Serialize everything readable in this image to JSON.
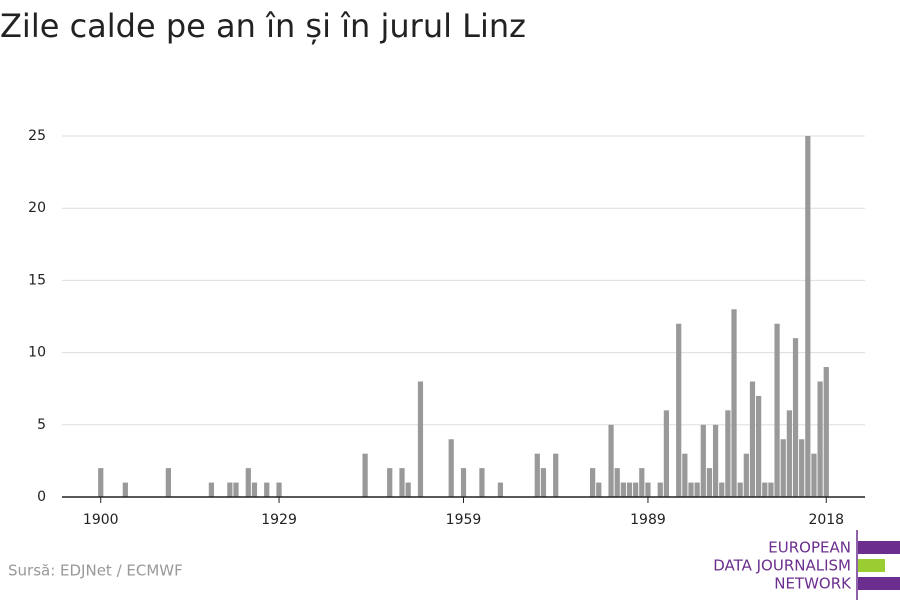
{
  "chart_data": {
    "type": "bar",
    "title": "Zile calde pe an în și în jurul Linz",
    "source": "Sursă: EDJNet / ECMWF",
    "x": [
      1900,
      1901,
      1902,
      1903,
      1904,
      1905,
      1906,
      1907,
      1908,
      1909,
      1910,
      1911,
      1912,
      1913,
      1914,
      1915,
      1916,
      1917,
      1918,
      1919,
      1920,
      1921,
      1922,
      1923,
      1924,
      1925,
      1926,
      1927,
      1928,
      1929,
      1930,
      1931,
      1932,
      1933,
      1934,
      1935,
      1936,
      1937,
      1938,
      1939,
      1940,
      1941,
      1942,
      1943,
      1944,
      1945,
      1946,
      1947,
      1948,
      1949,
      1950,
      1951,
      1952,
      1953,
      1954,
      1955,
      1956,
      1957,
      1958,
      1959,
      1960,
      1961,
      1962,
      1963,
      1964,
      1965,
      1966,
      1967,
      1968,
      1969,
      1970,
      1971,
      1972,
      1973,
      1974,
      1975,
      1976,
      1977,
      1978,
      1979,
      1980,
      1981,
      1982,
      1983,
      1984,
      1985,
      1986,
      1987,
      1988,
      1989,
      1990,
      1991,
      1992,
      1993,
      1994,
      1995,
      1996,
      1997,
      1998,
      1999,
      2000,
      2001,
      2002,
      2003,
      2004,
      2005,
      2006,
      2007,
      2008,
      2009,
      2010,
      2011,
      2012,
      2013,
      2014,
      2015,
      2016,
      2017,
      2018
    ],
    "values": [
      2,
      0,
      0,
      0,
      1,
      0,
      0,
      0,
      0,
      0,
      0,
      2,
      0,
      0,
      0,
      0,
      0,
      0,
      1,
      0,
      0,
      1,
      1,
      0,
      2,
      1,
      0,
      1,
      0,
      1,
      0,
      0,
      0,
      0,
      0,
      0,
      0,
      0,
      0,
      0,
      0,
      0,
      0,
      3,
      0,
      0,
      0,
      2,
      0,
      2,
      1,
      0,
      8,
      0,
      0,
      0,
      0,
      4,
      0,
      2,
      0,
      0,
      2,
      0,
      0,
      1,
      0,
      0,
      0,
      0,
      0,
      3,
      2,
      0,
      3,
      0,
      0,
      0,
      0,
      0,
      2,
      1,
      0,
      5,
      2,
      1,
      1,
      1,
      2,
      1,
      0,
      1,
      6,
      0,
      12,
      3,
      1,
      1,
      5,
      2,
      5,
      1,
      6,
      13,
      1,
      3,
      8,
      7,
      1,
      1,
      12,
      4,
      6,
      11,
      4,
      25,
      3,
      8,
      9
    ],
    "color": "#999999",
    "xlim": [
      1893.7,
      2024.3
    ],
    "xticks": [
      1900,
      1929,
      1959,
      1989,
      2018
    ],
    "ylim": [
      0,
      25
    ],
    "yticks": [
      0,
      5,
      10,
      15,
      20,
      25
    ],
    "grid": true,
    "logo": [
      "EUROPEAN",
      "DATA JOURNALISM",
      "NETWORK"
    ]
  }
}
